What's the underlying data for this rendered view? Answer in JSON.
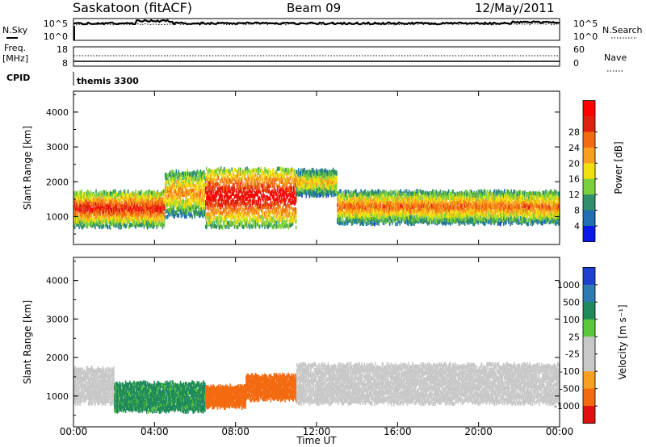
{
  "header": {
    "station": "Saskatoon (fitACF)",
    "beam": "Beam 09",
    "date": "12/May/2011"
  },
  "top_panel": {
    "nsky_label": "N.Sky",
    "nsky_ticks": [
      "10^5",
      "10^0"
    ],
    "nsearch_label": "N.Search",
    "nsearch_ticks": [
      "10^5",
      "10^0"
    ],
    "freq_label": "Freq.",
    "freq_unit": "[MHz]",
    "freq_ticks": [
      "18",
      "8"
    ],
    "nave_label": "Nave",
    "nave_ticks": [
      "60",
      "0"
    ],
    "cpid_label": "CPID",
    "cpid_value": "themis 3300"
  },
  "colors": {
    "power_scale": [
      "#0a18e8",
      "#1f6fb3",
      "#2e8f6a",
      "#7ccf3c",
      "#f0e010",
      "#f7a020",
      "#f36a10",
      "#e02010",
      "#ff0000"
    ],
    "velocity_scale": [
      "#1f3fcf",
      "#2f7ab0",
      "#1e8a5a",
      "#5ac83a",
      "#c8c8c8",
      "#c8c8c8",
      "#f7a020",
      "#f36a10",
      "#e01010"
    ]
  },
  "chart_data": [
    {
      "type": "heatmap",
      "panel": "power",
      "xlabel": "Time UT",
      "ylabel": "Slant Range [km]",
      "xlim": [
        0,
        24
      ],
      "ylim": [
        200,
        4600
      ],
      "x_ticks": [
        "00:00",
        "04:00",
        "08:00",
        "12:00",
        "16:00",
        "20:00",
        "00:00"
      ],
      "y_ticks": [
        "1000",
        "2000",
        "3000",
        "4000"
      ],
      "colorbar_label": "Power [dB]",
      "colorbar_ticks": [
        "4",
        "8",
        "12",
        "16",
        "20",
        "24",
        "28"
      ],
      "colorbar_range": [
        0,
        30
      ],
      "bands": [
        {
          "t_start": 0.0,
          "t_end": 4.5,
          "r_low": 800,
          "r_high": 1800,
          "peak_db": 26
        },
        {
          "t_start": 4.5,
          "t_end": 6.5,
          "r_low": 1100,
          "r_high": 2400,
          "peak_db": 20
        },
        {
          "t_start": 6.5,
          "t_end": 11.0,
          "r_low": 800,
          "r_high": 2500,
          "peak_db": 29
        },
        {
          "t_start": 11.0,
          "t_end": 13.0,
          "r_low": 1700,
          "r_high": 2400,
          "peak_db": 18
        },
        {
          "t_start": 13.0,
          "t_end": 24.0,
          "r_low": 900,
          "r_high": 1800,
          "peak_db": 22
        }
      ]
    },
    {
      "type": "heatmap",
      "panel": "velocity",
      "xlabel": "Time UT",
      "ylabel": "Slant Range [km]",
      "xlim": [
        0,
        24
      ],
      "ylim": [
        200,
        4600
      ],
      "x_ticks": [
        "00:00",
        "04:00",
        "08:00",
        "12:00",
        "16:00",
        "20:00",
        "00:00"
      ],
      "y_ticks": [
        "1000",
        "2000",
        "3000",
        "4000"
      ],
      "colorbar_label": "Velocity [m s⁻¹]",
      "colorbar_ticks": [
        "1000",
        "500",
        "100",
        "25",
        "-25",
        "-100",
        "-500",
        "-1000"
      ],
      "colorbar_range": [
        -1000,
        1000
      ],
      "bands": [
        {
          "t_start": 0.0,
          "t_end": 2.0,
          "r_low": 900,
          "r_high": 1800,
          "velocity": 10
        },
        {
          "t_start": 2.0,
          "t_end": 6.5,
          "r_low": 700,
          "r_high": 1400,
          "velocity": 120
        },
        {
          "t_start": 6.5,
          "t_end": 8.5,
          "r_low": 800,
          "r_high": 1300,
          "velocity": -150
        },
        {
          "t_start": 8.5,
          "t_end": 11.0,
          "r_low": 1000,
          "r_high": 1600,
          "velocity": -300
        },
        {
          "t_start": 11.0,
          "t_end": 24.0,
          "r_low": 900,
          "r_high": 1900,
          "velocity": 0
        }
      ]
    }
  ]
}
